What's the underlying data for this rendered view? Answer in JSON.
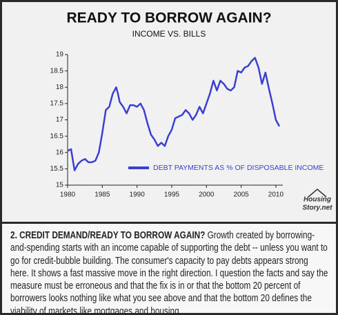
{
  "title": "READY TO BORROW AGAIN?",
  "logo": [
    "Housing",
    "Story.net"
  ],
  "chart_data": {
    "type": "line",
    "subtitle": "INCOME VS. BILLS",
    "x": [
      1980,
      1980.5,
      1981,
      1981.5,
      1982,
      1982.5,
      1983,
      1983.5,
      1984,
      1984.5,
      1985,
      1985.5,
      1986,
      1986.5,
      1987,
      1987.25,
      1987.5,
      1988,
      1988.5,
      1989,
      1989.5,
      1990,
      1990.5,
      1991,
      1991.5,
      1992,
      1992.5,
      1993,
      1993.5,
      1994,
      1994.5,
      1995,
      1995.5,
      1996,
      1996.5,
      1997,
      1997.5,
      1998,
      1998.5,
      1999,
      1999.5,
      2000,
      2000.5,
      2001,
      2001.5,
      2002,
      2002.5,
      2003,
      2003.5,
      2004,
      2004.5,
      2005,
      2005.5,
      2006,
      2006.5,
      2007,
      2007.5,
      2008,
      2008.5,
      2009,
      2009.5,
      2010,
      2010.5
    ],
    "series": [
      {
        "name": "DEBT PAYMENTS AS % OF DISPOSABLE INCOME",
        "color": "#3a3fd0",
        "values": [
          16.05,
          16.1,
          15.45,
          15.65,
          15.75,
          15.8,
          15.7,
          15.7,
          15.75,
          16.0,
          16.6,
          17.3,
          17.4,
          17.8,
          18.0,
          17.8,
          17.55,
          17.4,
          17.2,
          17.45,
          17.45,
          17.4,
          17.5,
          17.3,
          16.9,
          16.55,
          16.4,
          16.2,
          16.3,
          16.2,
          16.5,
          16.7,
          17.05,
          17.1,
          17.15,
          17.3,
          17.2,
          17.0,
          17.15,
          17.4,
          17.2,
          17.5,
          17.8,
          18.2,
          17.9,
          18.2,
          18.1,
          17.95,
          17.9,
          18.0,
          18.5,
          18.45,
          18.6,
          18.65,
          18.8,
          18.9,
          18.6,
          18.1,
          18.45,
          17.95,
          17.5,
          17.0,
          16.8
        ]
      }
    ],
    "xlim": [
      1980,
      2011
    ],
    "xticks": [
      1980,
      1985,
      1990,
      1995,
      2000,
      2005,
      2010
    ],
    "ylim": [
      15,
      19
    ],
    "yticks": [
      15,
      15.5,
      16,
      16.5,
      17,
      17.5,
      18,
      18.5,
      19
    ]
  },
  "note": {
    "lead": "2. CREDIT DEMAND/READY TO BORROW AGAIN?",
    "text": " Growth created by borrowing-and-spending starts with an income capable of supporting the debt -- unless you want to go for credit-bubble building. The consumer's capacity to pay debts appears strong here. It shows a fast massive move in the right direction. I question the facts and say the measure must be erroneous and that the fix is in or that the bottom 20 percent of borrowers looks nothing like what you see above and that the bottom 20 defines the viability of markets like mortgages and housing."
  }
}
